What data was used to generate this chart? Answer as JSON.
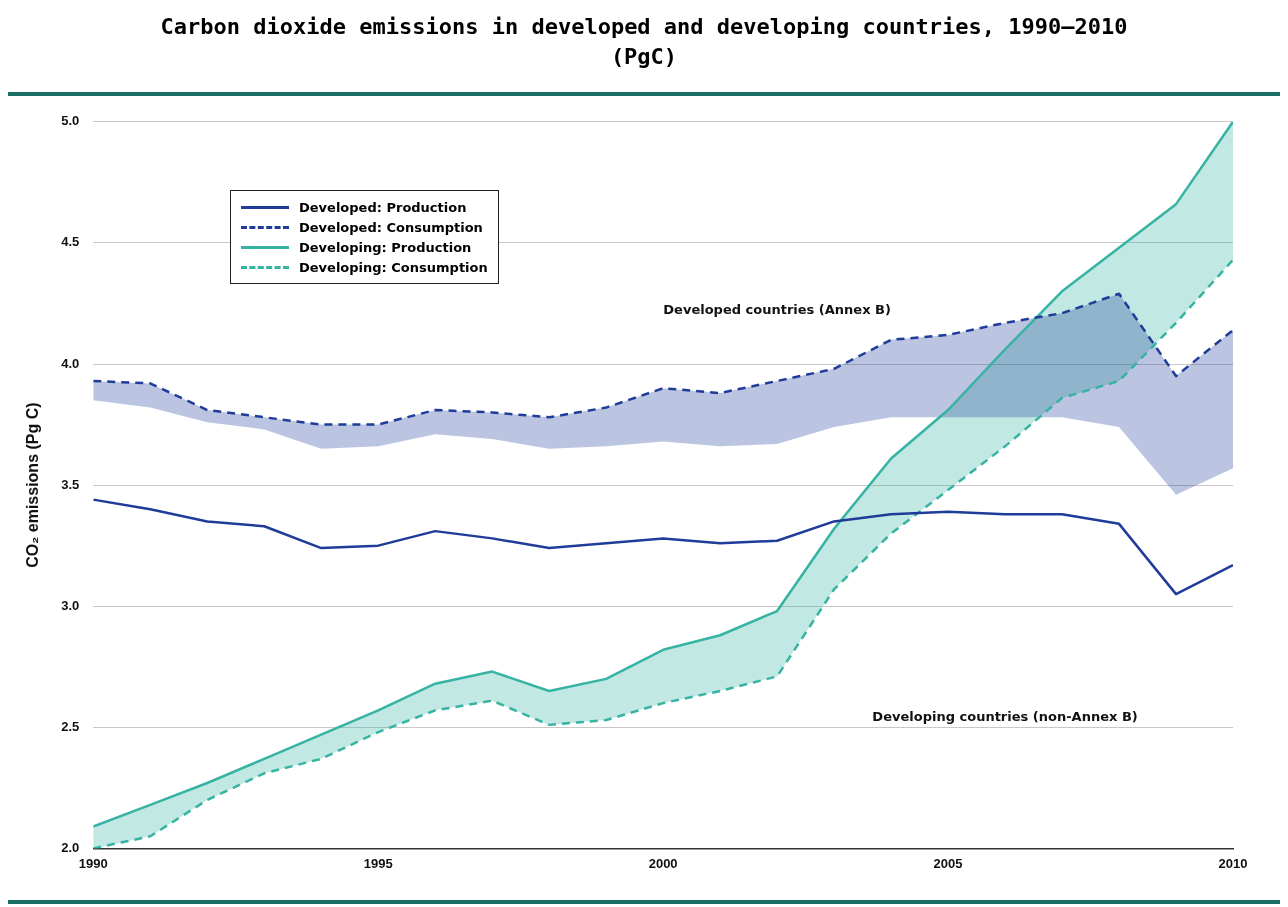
{
  "chart_data": {
    "type": "line",
    "title": "Carbon dioxide emissions in developed and developing countries, 1990–2010 (PgC)",
    "ylabel": "CO₂ emissions (Pg C)",
    "x": [
      1990,
      1991,
      1992,
      1993,
      1994,
      1995,
      1996,
      1997,
      1998,
      1999,
      2000,
      2001,
      2002,
      2003,
      2004,
      2005,
      2006,
      2007,
      2008,
      2009,
      2010
    ],
    "series": [
      {
        "name": "Developed: Production",
        "color": "#1f3c99",
        "line_style": "solid",
        "values": [
          3.44,
          3.4,
          3.35,
          3.33,
          3.24,
          3.25,
          3.31,
          3.28,
          3.24,
          3.26,
          3.28,
          3.26,
          3.27,
          3.35,
          3.38,
          3.39,
          3.38,
          3.38,
          3.34,
          3.05,
          3.17
        ]
      },
      {
        "name": "Developed: Consumption",
        "color": "#1f3c99",
        "line_style": "dashed",
        "values": [
          3.93,
          3.92,
          3.81,
          3.78,
          3.75,
          3.75,
          3.81,
          3.8,
          3.78,
          3.82,
          3.9,
          3.88,
          3.93,
          3.98,
          4.1,
          4.12,
          4.17,
          4.21,
          4.29,
          3.95,
          4.14
        ],
        "lower": [
          3.85,
          3.82,
          3.76,
          3.73,
          3.65,
          3.66,
          3.71,
          3.69,
          3.65,
          3.66,
          3.68,
          3.66,
          3.67,
          3.74,
          3.78,
          3.78,
          3.78,
          3.78,
          3.74,
          3.46,
          3.57
        ],
        "upper": [
          3.93,
          3.92,
          3.81,
          3.78,
          3.75,
          3.75,
          3.81,
          3.8,
          3.78,
          3.82,
          3.9,
          3.88,
          3.93,
          3.98,
          4.1,
          4.12,
          4.17,
          4.21,
          4.29,
          3.95,
          4.14
        ]
      },
      {
        "name": "Developing: Production",
        "color": "#36b3a3",
        "line_style": "solid",
        "values": [
          2.09,
          2.18,
          2.27,
          2.37,
          2.47,
          2.57,
          2.68,
          2.73,
          2.65,
          2.7,
          2.82,
          2.88,
          2.98,
          3.32,
          3.61,
          3.81,
          4.06,
          4.3,
          4.48,
          4.66,
          5.0
        ],
        "lower": [
          2.0,
          2.05,
          2.2,
          2.31,
          2.37,
          2.48,
          2.57,
          2.61,
          2.51,
          2.53,
          2.6,
          2.65,
          2.71,
          3.07,
          3.3,
          3.48,
          3.66,
          3.86,
          3.93,
          4.17,
          4.43
        ],
        "upper": [
          2.09,
          2.18,
          2.27,
          2.37,
          2.47,
          2.57,
          2.68,
          2.73,
          2.65,
          2.7,
          2.82,
          2.88,
          2.98,
          3.32,
          3.61,
          3.81,
          4.06,
          4.3,
          4.48,
          4.66,
          5.0
        ]
      },
      {
        "name": "Developing: Consumption",
        "color": "#36b3a3",
        "line_style": "dashed",
        "values": [
          2.0,
          2.05,
          2.2,
          2.31,
          2.37,
          2.48,
          2.57,
          2.61,
          2.51,
          2.53,
          2.6,
          2.65,
          2.71,
          3.07,
          3.3,
          3.48,
          3.66,
          3.86,
          3.93,
          4.17,
          4.43
        ]
      }
    ],
    "xlim": [
      1990,
      2010
    ],
    "xticks": [
      1990,
      1995,
      2000,
      2005,
      2010
    ],
    "ylim": [
      2,
      5
    ],
    "yticks": [
      {
        "value": 2,
        "label": "2.0"
      },
      {
        "value": 2.5,
        "label": "2.5"
      },
      {
        "value": 3,
        "label": "3.0"
      },
      {
        "value": 3.5,
        "label": "3.5"
      },
      {
        "value": 4,
        "label": "4.0"
      },
      {
        "value": 4.5,
        "label": "4.5"
      },
      {
        "value": 5,
        "label": "5.0"
      }
    ],
    "grid": "y",
    "legend": "top left",
    "marker": "none",
    "annotations": [
      "Developed countries (Annex B)",
      "Developing countries (non-Annex B)"
    ]
  }
}
